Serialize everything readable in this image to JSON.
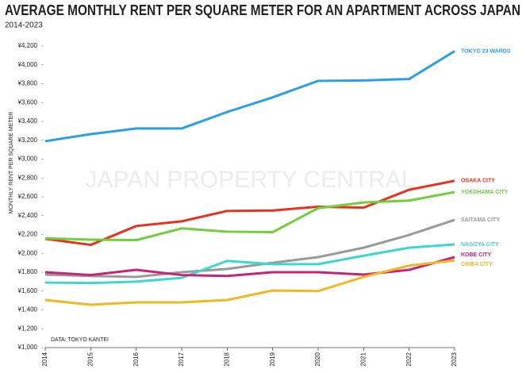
{
  "chart_data": {
    "type": "line",
    "title": "AVERAGE MONTHLY RENT PER SQUARE METER FOR AN APARTMENT ACROSS JAPAN",
    "subtitle": "2014-2023",
    "y_label": "MONTHLY RENT PER SQUARE METER",
    "watermark": "JAPAN PROPERTY CENTRAL",
    "source": "DATA: TOKYO KANTEI",
    "x": [
      2014,
      2015,
      2016,
      2017,
      2018,
      2019,
      2020,
      2021,
      2022,
      2023
    ],
    "xlim": [
      2014,
      2023
    ],
    "xticks": [
      2014,
      2015,
      2016,
      2017,
      2018,
      2019,
      2020,
      2021,
      2022,
      2023
    ],
    "ylim": [
      1000,
      4200
    ],
    "yticks": [
      {
        "value": 1000,
        "label": "¥1,000"
      },
      {
        "value": 1200,
        "label": "¥1,200"
      },
      {
        "value": 1400,
        "label": "¥1,400"
      },
      {
        "value": 1600,
        "label": "¥1,600"
      },
      {
        "value": 1800,
        "label": "¥1,800"
      },
      {
        "value": 2000,
        "label": "¥2,000"
      },
      {
        "value": 2200,
        "label": "¥2,200"
      },
      {
        "value": 2400,
        "label": "¥2,400"
      },
      {
        "value": 2600,
        "label": "¥2,600"
      },
      {
        "value": 2800,
        "label": "¥2,800"
      },
      {
        "value": 3000,
        "label": "¥3,000"
      },
      {
        "value": 3200,
        "label": "¥3,200"
      },
      {
        "value": 3400,
        "label": "¥3,400"
      },
      {
        "value": 3600,
        "label": "¥3,600"
      },
      {
        "value": 3800,
        "label": "¥3,800"
      },
      {
        "value": 4000,
        "label": "¥4,000"
      },
      {
        "value": 4200,
        "label": "¥4,200"
      }
    ],
    "grid": false,
    "series": [
      {
        "name": "TOKYO 23 WARDS",
        "color": "#2b9fe6",
        "values": [
          3190,
          3265,
          3325,
          3325,
          3500,
          3655,
          3830,
          3835,
          3850,
          4145
        ]
      },
      {
        "name": "OSAKA CITY",
        "color": "#e8321e",
        "values": [
          2155,
          2090,
          2290,
          2340,
          2450,
          2455,
          2495,
          2485,
          2675,
          2770
        ]
      },
      {
        "name": "YOKOHAMA CITY",
        "color": "#6fcf3c",
        "values": [
          2160,
          2145,
          2140,
          2265,
          2230,
          2225,
          2480,
          2540,
          2560,
          2650
        ]
      },
      {
        "name": "SAITAMA CITY",
        "color": "#9a9a9a",
        "values": [
          1775,
          1760,
          1750,
          1800,
          1835,
          1900,
          1960,
          2060,
          2195,
          2355
        ]
      },
      {
        "name": "NAGOYA CITY",
        "color": "#3fd6cf",
        "values": [
          1690,
          1685,
          1700,
          1740,
          1920,
          1885,
          1885,
          1975,
          2060,
          2095
        ]
      },
      {
        "name": "KOBE CITY",
        "color": "#c8237a",
        "values": [
          1800,
          1770,
          1825,
          1770,
          1760,
          1800,
          1800,
          1775,
          1825,
          1960
        ]
      },
      {
        "name": "CHIBA CITY",
        "color": "#f2b824",
        "values": [
          1505,
          1455,
          1480,
          1480,
          1505,
          1605,
          1600,
          1750,
          1870,
          1925
        ]
      }
    ]
  }
}
